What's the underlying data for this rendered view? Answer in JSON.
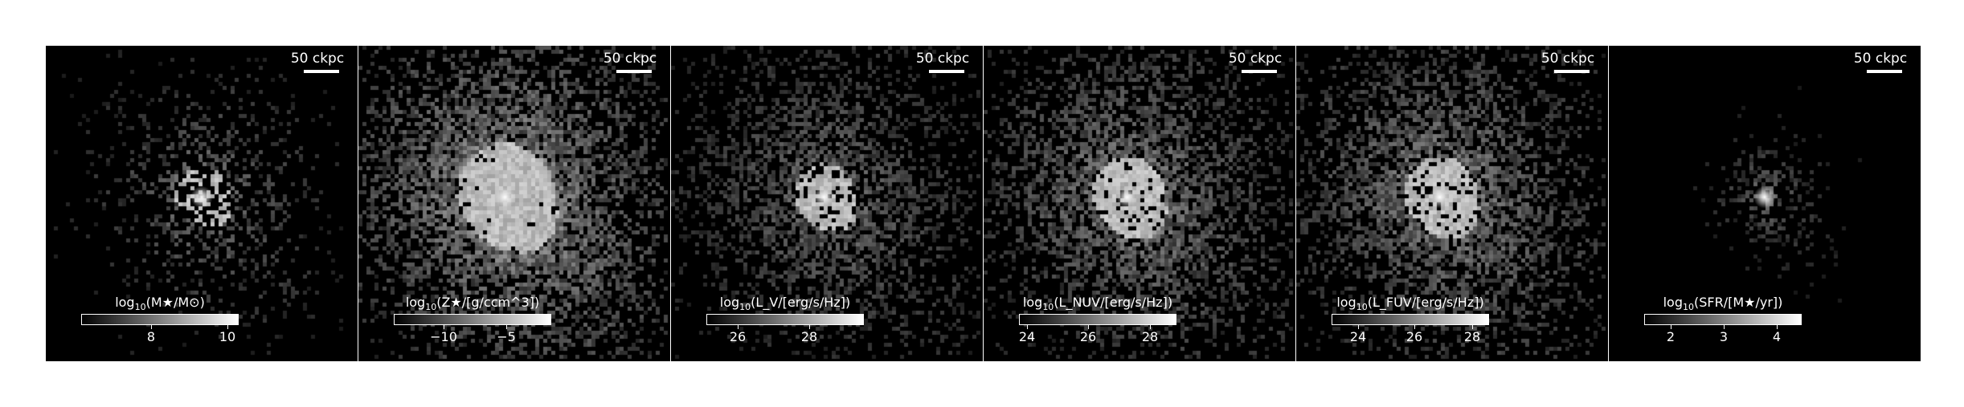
{
  "scale_bar_label": "50 ckpc",
  "panels": [
    {
      "id": "stellar-mass",
      "colorbar": {
        "label_prefix": "log",
        "label_sub": "10",
        "label_rest": "(M★/M⊙)",
        "ticks": [
          {
            "label": "8",
            "frac": 0.45
          },
          {
            "label": "10",
            "frac": 0.94
          }
        ]
      },
      "map": {
        "core_x": 0.5,
        "core_y": 0.48,
        "spread": 0.2,
        "density": 0.28,
        "bright": 0.55,
        "blob_radius": 0.09
      }
    },
    {
      "id": "metallicity",
      "colorbar": {
        "label_prefix": "log",
        "label_sub": "10",
        "label_rest": "(Z★/[g/ccm^3])",
        "ticks": [
          {
            "label": "−10",
            "frac": 0.32
          },
          {
            "label": "−5",
            "frac": 0.72
          }
        ]
      },
      "map": {
        "core_x": 0.47,
        "core_y": 0.48,
        "spread": 0.32,
        "density": 0.62,
        "bright": 0.75,
        "blob_radius": 0.16
      }
    },
    {
      "id": "luminosity-v",
      "colorbar": {
        "label_prefix": "log",
        "label_sub": "10",
        "label_rest": "(L_V/[erg/s/Hz])",
        "ticks": [
          {
            "label": "26",
            "frac": 0.2
          },
          {
            "label": "28",
            "frac": 0.66
          }
        ]
      },
      "map": {
        "core_x": 0.49,
        "core_y": 0.48,
        "spread": 0.28,
        "density": 0.48,
        "bright": 0.5,
        "blob_radius": 0.1
      }
    },
    {
      "id": "luminosity-nuv",
      "colorbar": {
        "label_prefix": "log",
        "label_sub": "10",
        "label_rest": "(L_NUV/[erg/s/Hz])",
        "ticks": [
          {
            "label": "24",
            "frac": 0.05
          },
          {
            "label": "26",
            "frac": 0.44
          },
          {
            "label": "28",
            "frac": 0.84
          }
        ]
      },
      "map": {
        "core_x": 0.46,
        "core_y": 0.48,
        "spread": 0.3,
        "density": 0.55,
        "bright": 0.6,
        "blob_radius": 0.12
      }
    },
    {
      "id": "luminosity-fuv",
      "colorbar": {
        "label_prefix": "log",
        "label_sub": "10",
        "label_rest": "(L_FUV/[erg/s/Hz])",
        "ticks": [
          {
            "label": "24",
            "frac": 0.17
          },
          {
            "label": "26",
            "frac": 0.53
          },
          {
            "label": "28",
            "frac": 0.9
          }
        ]
      },
      "map": {
        "core_x": 0.46,
        "core_y": 0.48,
        "spread": 0.3,
        "density": 0.55,
        "bright": 0.62,
        "blob_radius": 0.12
      }
    },
    {
      "id": "sfr",
      "colorbar": {
        "label_prefix": "log",
        "label_sub": "10",
        "label_rest": "(SFR/[M★/yr])",
        "ticks": [
          {
            "label": "2",
            "frac": 0.17
          },
          {
            "label": "3",
            "frac": 0.51
          },
          {
            "label": "4",
            "frac": 0.85
          }
        ]
      },
      "map": {
        "core_x": 0.5,
        "core_y": 0.48,
        "spread": 0.1,
        "density": 0.35,
        "bright": 0.45,
        "blob_radius": 0.0
      }
    }
  ]
}
